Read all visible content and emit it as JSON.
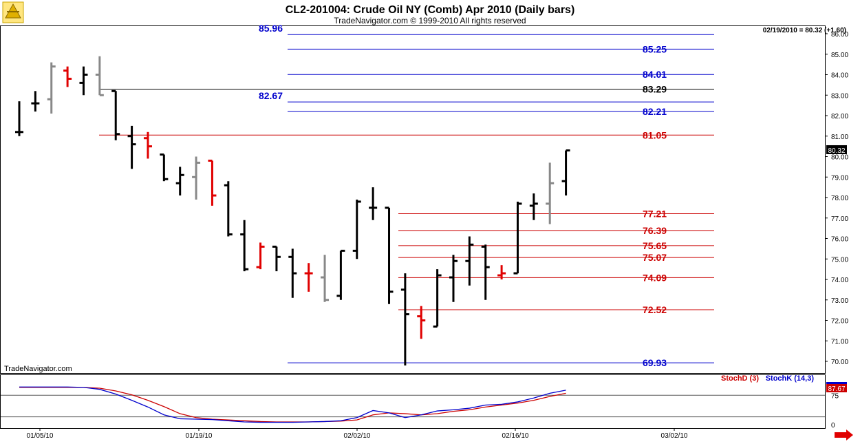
{
  "chart_data": {
    "type": "bar",
    "title": "CL2-201004:  Crude Oil NY (Comb) Apr 2010  (Daily bars)",
    "subtitle": "TradeNavigator.com © 1999-2010 All rights reserved",
    "watermark": "TradeNavigator.com",
    "last_quote": "02/19/2010 = 80.32 (+1.60)",
    "last_price_label": "80.32",
    "ylim": [
      69.8,
      86.3
    ],
    "y_ticks": [
      "70.00",
      "71.00",
      "72.00",
      "73.00",
      "74.00",
      "75.00",
      "76.00",
      "77.00",
      "78.00",
      "79.00",
      "80.00",
      "81.00",
      "82.00",
      "83.00",
      "84.00",
      "85.00",
      "86.00"
    ],
    "x_labels": [
      "01/05/10",
      "01/19/10",
      "02/02/10",
      "02/16/10",
      "03/02/10"
    ],
    "colors": {
      "up": "#000000",
      "down": "#e00000",
      "neutral": "#888888",
      "blue_level": "#0000cc",
      "red_level": "#cc0000",
      "black_level": "#000000",
      "stoch_k": "#0000cc",
      "stoch_d": "#cc0000"
    },
    "levels": [
      {
        "value": 85.96,
        "label": "85.96",
        "color": "blue",
        "label_side": "left"
      },
      {
        "value": 85.25,
        "label": "85.25",
        "color": "blue",
        "label_side": "right"
      },
      {
        "value": 84.01,
        "label": "84.01",
        "color": "blue",
        "label_side": "right"
      },
      {
        "value": 83.29,
        "label": "83.29",
        "color": "black",
        "label_side": "right"
      },
      {
        "value": 82.67,
        "label": "82.67",
        "color": "blue",
        "label_side": "left"
      },
      {
        "value": 82.21,
        "label": "82.21",
        "color": "blue",
        "label_side": "right"
      },
      {
        "value": 81.05,
        "label": "81.05",
        "color": "red",
        "label_side": "right"
      },
      {
        "value": 77.21,
        "label": "77.21",
        "color": "red",
        "label_side": "right"
      },
      {
        "value": 76.39,
        "label": "76.39",
        "color": "red",
        "label_side": "right"
      },
      {
        "value": 75.65,
        "label": "75.65",
        "color": "red",
        "label_side": "right"
      },
      {
        "value": 75.07,
        "label": "75.07",
        "color": "red",
        "label_side": "right"
      },
      {
        "value": 74.09,
        "label": "74.09",
        "color": "red",
        "label_side": "right"
      },
      {
        "value": 72.52,
        "label": "72.52",
        "color": "red",
        "label_side": "right"
      },
      {
        "value": 69.93,
        "label": "69.93",
        "color": "blue",
        "label_side": "right"
      }
    ],
    "bars": [
      {
        "o": 81.2,
        "h": 82.7,
        "l": 81.0,
        "c": 81.2,
        "t": "up"
      },
      {
        "o": 82.6,
        "h": 83.2,
        "l": 82.2,
        "c": 82.6,
        "t": "up"
      },
      {
        "o": 82.8,
        "h": 84.6,
        "l": 82.1,
        "c": 84.4,
        "t": "neutral"
      },
      {
        "o": 84.2,
        "h": 84.4,
        "l": 83.4,
        "c": 83.8,
        "t": "down"
      },
      {
        "o": 83.6,
        "h": 84.4,
        "l": 83.0,
        "c": 84.0,
        "t": "up"
      },
      {
        "o": 84.0,
        "h": 84.9,
        "l": 83.0,
        "c": 83.0,
        "t": "neutral"
      },
      {
        "o": 83.2,
        "h": 83.2,
        "l": 80.8,
        "c": 81.1,
        "t": "up"
      },
      {
        "o": 81.0,
        "h": 81.5,
        "l": 79.4,
        "c": 80.6,
        "t": "up"
      },
      {
        "o": 80.9,
        "h": 81.2,
        "l": 79.9,
        "c": 80.5,
        "t": "down"
      },
      {
        "o": 80.1,
        "h": 80.1,
        "l": 78.8,
        "c": 78.9,
        "t": "up"
      },
      {
        "o": 78.7,
        "h": 79.5,
        "l": 78.1,
        "c": 79.1,
        "t": "up"
      },
      {
        "o": 79.0,
        "h": 80.0,
        "l": 77.9,
        "c": 79.7,
        "t": "neutral"
      },
      {
        "o": 79.8,
        "h": 79.8,
        "l": 77.6,
        "c": 78.1,
        "t": "down"
      },
      {
        "o": 78.6,
        "h": 78.8,
        "l": 76.1,
        "c": 76.2,
        "t": "up"
      },
      {
        "o": 76.2,
        "h": 76.9,
        "l": 74.4,
        "c": 74.5,
        "t": "up"
      },
      {
        "o": 74.6,
        "h": 75.8,
        "l": 74.5,
        "c": 75.6,
        "t": "down"
      },
      {
        "o": 75.6,
        "h": 75.6,
        "l": 74.4,
        "c": 75.1,
        "t": "up"
      },
      {
        "o": 75.1,
        "h": 75.5,
        "l": 73.1,
        "c": 74.3,
        "t": "up"
      },
      {
        "o": 74.3,
        "h": 74.8,
        "l": 73.4,
        "c": 74.3,
        "t": "down"
      },
      {
        "o": 74.1,
        "h": 75.2,
        "l": 72.9,
        "c": 73.0,
        "t": "neutral"
      },
      {
        "o": 73.2,
        "h": 75.4,
        "l": 73.0,
        "c": 75.4,
        "t": "up"
      },
      {
        "o": 75.4,
        "h": 77.9,
        "l": 75.0,
        "c": 77.8,
        "t": "up"
      },
      {
        "o": 77.5,
        "h": 78.5,
        "l": 76.9,
        "c": 77.5,
        "t": "up"
      },
      {
        "o": 77.5,
        "h": 77.5,
        "l": 72.8,
        "c": 73.4,
        "t": "up"
      },
      {
        "o": 73.5,
        "h": 74.3,
        "l": 69.8,
        "c": 72.3,
        "t": "up"
      },
      {
        "o": 72.2,
        "h": 72.7,
        "l": 71.1,
        "c": 72.0,
        "t": "down"
      },
      {
        "o": 71.7,
        "h": 74.5,
        "l": 71.7,
        "c": 74.2,
        "t": "up"
      },
      {
        "o": 74.1,
        "h": 75.2,
        "l": 72.9,
        "c": 74.9,
        "t": "up"
      },
      {
        "o": 74.9,
        "h": 76.1,
        "l": 73.7,
        "c": 75.7,
        "t": "up"
      },
      {
        "o": 75.6,
        "h": 75.7,
        "l": 73.0,
        "c": 74.6,
        "t": "up"
      },
      {
        "o": 74.2,
        "h": 74.7,
        "l": 74.0,
        "c": 74.3,
        "t": "down"
      },
      {
        "o": 74.3,
        "h": 77.8,
        "l": 74.3,
        "c": 77.7,
        "t": "up"
      },
      {
        "o": 77.6,
        "h": 78.2,
        "l": 76.9,
        "c": 77.7,
        "t": "up"
      },
      {
        "o": 77.7,
        "h": 79.7,
        "l": 76.7,
        "c": 78.7,
        "t": "neutral"
      },
      {
        "o": 78.8,
        "h": 80.3,
        "l": 78.1,
        "c": 80.3,
        "t": "up"
      }
    ],
    "stochastic": {
      "legend_d": "StochD (3)",
      "legend_k": "StochK (14,3)",
      "value_label": "87.67",
      "y_ticks": [
        "75",
        "0"
      ],
      "k": [
        96,
        96,
        96,
        96,
        95,
        90,
        78,
        62,
        45,
        25,
        15,
        14,
        13,
        10,
        7,
        6,
        6,
        6,
        7,
        8,
        10,
        18,
        36,
        30,
        18,
        25,
        35,
        38,
        42,
        50,
        52,
        58,
        68,
        80,
        88
      ],
      "d": [
        95,
        95,
        95,
        95,
        95,
        93,
        86,
        76,
        62,
        46,
        28,
        18,
        14,
        12,
        10,
        8,
        7,
        7,
        7,
        8,
        9,
        12,
        25,
        30,
        28,
        25,
        28,
        34,
        38,
        45,
        50,
        55,
        62,
        72,
        80
      ]
    }
  }
}
